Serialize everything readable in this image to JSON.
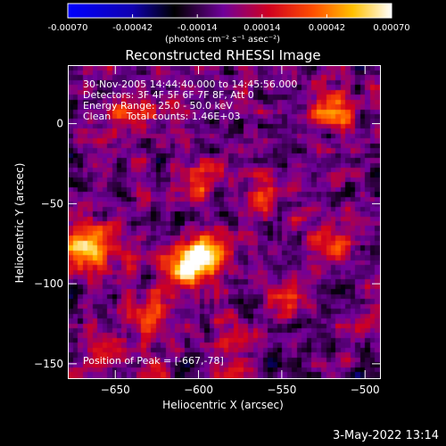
{
  "chart_data": {
    "type": "heatmap",
    "title": "Reconstructed RHESSI Image",
    "xlabel": "Heliocentric X (arcsec)",
    "ylabel": "Heliocentric Y (arcsec)",
    "xlim": [
      -678,
      -491
    ],
    "ylim": [
      -159,
      36
    ],
    "xticks": [
      -650,
      -600,
      -550,
      -500
    ],
    "yticks": [
      0,
      -50,
      -100,
      -150
    ],
    "colorbar": {
      "min": -0.0007,
      "max": 0.0007,
      "ticks": [
        "-0.00070",
        "-0.00042",
        "-0.00014",
        "0.00014",
        "0.00042",
        "0.00070"
      ],
      "label": "(photons cm⁻² s⁻¹ asec⁻²)"
    },
    "annotations": [
      "30-Nov-2005 14:44:40.000 to 14:45:56.000",
      "Detectors: 3F 4F 5F 6F 7F 8F, Att 0",
      "Energy Range: 25.0 - 50.0 keV",
      "Clean     Total counts: 1.46E+03"
    ],
    "peak_label": "Position of Peak = [-667,-78]",
    "peak": [
      -667,
      -78
    ],
    "sources": [
      {
        "x": -667,
        "y": -78,
        "peak": 0.00068
      },
      {
        "x": -606,
        "y": -90,
        "peak": 0.00062
      },
      {
        "x": -596,
        "y": -80,
        "peak": 0.00055
      },
      {
        "x": -518,
        "y": 8,
        "peak": 0.0005
      },
      {
        "x": -640,
        "y": 5,
        "peak": 0.0004
      },
      {
        "x": -630,
        "y": -120,
        "peak": 0.00035
      },
      {
        "x": -560,
        "y": -45,
        "peak": 0.0003
      },
      {
        "x": -545,
        "y": -110,
        "peak": 0.00028
      },
      {
        "x": -600,
        "y": -35,
        "peak": 0.0003
      },
      {
        "x": -580,
        "y": -140,
        "peak": 0.00025
      },
      {
        "x": -655,
        "y": -145,
        "peak": 0.00022
      },
      {
        "x": -520,
        "y": -75,
        "peak": 0.00022
      }
    ],
    "colormap": [
      "#0000ff",
      "#000000",
      "#7000a0",
      "#d00000",
      "#ff6000",
      "#ffff00",
      "#ffffff"
    ]
  },
  "footer_date": "3-May-2022 13:14"
}
